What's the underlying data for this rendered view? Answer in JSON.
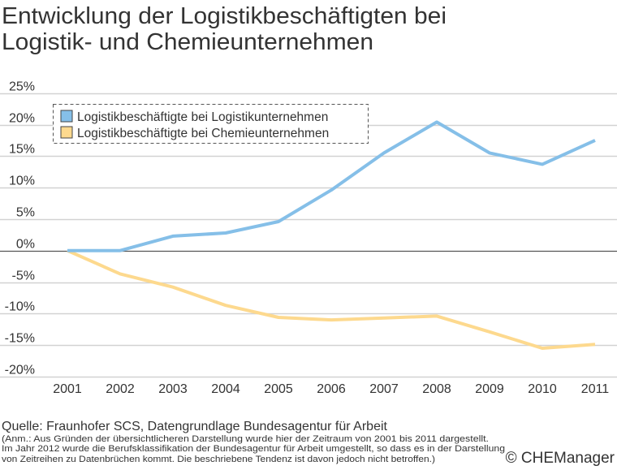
{
  "chart_data": {
    "type": "line",
    "title": [
      "Entwicklung der Logistikbeschäftigten bei",
      "Logistik- und Chemieunternehmen"
    ],
    "xlabel": "",
    "ylabel": "",
    "categories": [
      "2001",
      "2002",
      "2003",
      "2004",
      "2005",
      "2006",
      "2007",
      "2008",
      "2009",
      "2010",
      "2011"
    ],
    "ylim": [
      -20,
      25
    ],
    "yticks": [
      25,
      20,
      15,
      10,
      5,
      0,
      -5,
      -10,
      -15,
      -20
    ],
    "ytick_labels": [
      "25%",
      "20%",
      "15%",
      "10%",
      "5%",
      "0%",
      "-5%",
      "-10%",
      "-15%",
      "-20%"
    ],
    "grid": true,
    "legend_position": "top-left",
    "series": [
      {
        "name": "Logistikbeschäftigte bei Logistikunternehmen",
        "color": "#85bfe8",
        "values": [
          0,
          0,
          2.3,
          2.8,
          4.6,
          9.6,
          15.5,
          20.4,
          15.5,
          13.7,
          17.5
        ]
      },
      {
        "name": "Logistikbeschäftigte bei Chemieunternehmen",
        "color": "#fdd98e",
        "values": [
          0,
          -3.7,
          -5.8,
          -8.7,
          -10.6,
          -11.0,
          -10.7,
          -10.4,
          -12.9,
          -15.5,
          -14.9
        ]
      }
    ]
  },
  "footer": {
    "source": "Quelle: Fraunhofer SCS, Datengrundlage Bundesagentur für Arbeit",
    "notes": [
      "(Anm.: Aus Gründen der übersichtlicheren Darstellung wurde hier der Zeitraum von 2001 bis 2011 dargestellt.",
      "Im Jahr 2012 wurde die Berufsklassifikation der Bundesagentur für Arbeit umgestellt, so dass es in der Darstellung",
      "von Zeitreihen zu Datenbrüchen kommt. Die beschriebene Tendenz ist davon jedoch nicht betroffen.)"
    ],
    "copyright": "© CHEManager"
  }
}
